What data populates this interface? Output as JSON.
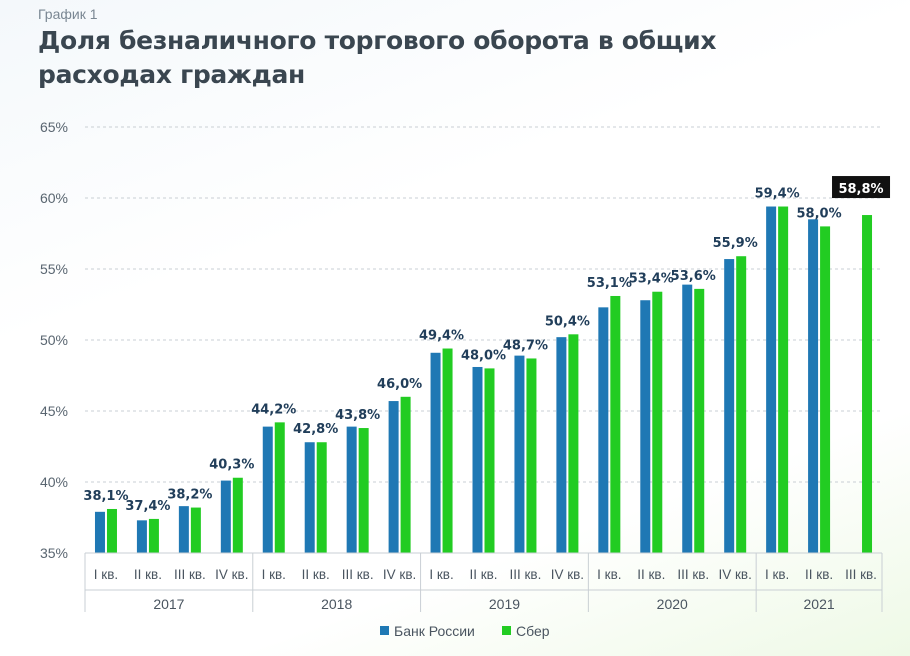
{
  "header": {
    "subtitle": "График 1",
    "title": "Доля безналичного торгового оборота в общих расходах граждан"
  },
  "chart_data": {
    "type": "bar",
    "ylim": [
      35,
      65
    ],
    "yticks": [
      "35%",
      "40%",
      "45%",
      "50%",
      "55%",
      "60%",
      "65%"
    ],
    "ytick_values": [
      35,
      40,
      45,
      50,
      55,
      60,
      65
    ],
    "quarters": [
      "I кв.",
      "II кв.",
      "III кв.",
      "IV кв.",
      "I кв.",
      "II кв.",
      "III кв.",
      "IV кв.",
      "I кв.",
      "II кв.",
      "III кв.",
      "IV кв.",
      "I кв.",
      "II кв.",
      "III кв.",
      "IV кв.",
      "I кв.",
      "II кв.",
      "III кв."
    ],
    "years": [
      {
        "label": "2017",
        "count": 4
      },
      {
        "label": "2018",
        "count": 4
      },
      {
        "label": "2019",
        "count": 4
      },
      {
        "label": "2020",
        "count": 4
      },
      {
        "label": "2021",
        "count": 3
      }
    ],
    "series": [
      {
        "name": "Банк России",
        "color": "#1f78b4",
        "values": [
          37.9,
          37.3,
          38.3,
          40.1,
          43.9,
          42.8,
          43.9,
          45.7,
          49.1,
          48.1,
          48.9,
          50.2,
          52.3,
          52.8,
          53.9,
          55.7,
          59.4,
          58.5,
          null
        ]
      },
      {
        "name": "Сбер",
        "color": "#22cc22",
        "values": [
          38.1,
          37.4,
          38.2,
          40.3,
          44.2,
          42.8,
          43.8,
          46.0,
          49.4,
          48.0,
          48.7,
          50.4,
          53.1,
          53.4,
          53.6,
          55.9,
          59.4,
          58.0,
          58.8
        ]
      }
    ],
    "data_labels": [
      "38,1%",
      "37,4%",
      "38,2%",
      "40,3%",
      "44,2%",
      "42,8%",
      "43,8%",
      "46,0%",
      "49,4%",
      "48,0%",
      "48,7%",
      "50,4%",
      "53,1%",
      "53,4%",
      "53,6%",
      "55,9%",
      "59,4%",
      "58,0%",
      "58,8%"
    ],
    "highlight_label_index": 18,
    "legend": [
      "Банк России",
      "Сбер"
    ],
    "legend_position": "bottom"
  }
}
